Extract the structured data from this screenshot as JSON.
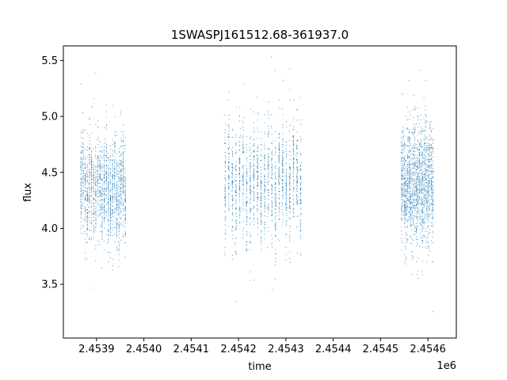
{
  "chart_data": {
    "type": "scatter",
    "title": "1SWASPJ161512.68-361937.0",
    "xlabel": "time",
    "ylabel": "flux",
    "x_offset_label": "1e6",
    "xlim": [
      2.45383,
      2.45466
    ],
    "ylim": [
      3.02,
      5.63
    ],
    "x_ticks": [
      2.4539,
      2.454,
      2.4541,
      2.4542,
      2.4543,
      2.4544,
      2.4545,
      2.4546
    ],
    "x_tick_labels": [
      "2.4539",
      "2.4540",
      "2.4541",
      "2.4542",
      "2.4543",
      "2.4544",
      "2.4545",
      "2.4546"
    ],
    "y_ticks": [
      3.5,
      4.0,
      4.5,
      5.0,
      5.5
    ],
    "y_tick_labels": [
      "3.5",
      "4.0",
      "4.5",
      "5.0",
      "5.5"
    ],
    "grid": false,
    "marker_color": "#1f77b4",
    "segments": [
      {
        "x_start": 2.453865,
        "x_end": 2.453963,
        "y_center": 4.35,
        "y_spread": 0.22
      },
      {
        "x_start": 2.454168,
        "x_end": 2.454335,
        "y_center": 4.4,
        "y_spread": 0.25
      },
      {
        "x_start": 2.454543,
        "x_end": 2.454612,
        "y_center": 4.4,
        "y_spread": 0.25
      }
    ],
    "n_points": 5200
  }
}
